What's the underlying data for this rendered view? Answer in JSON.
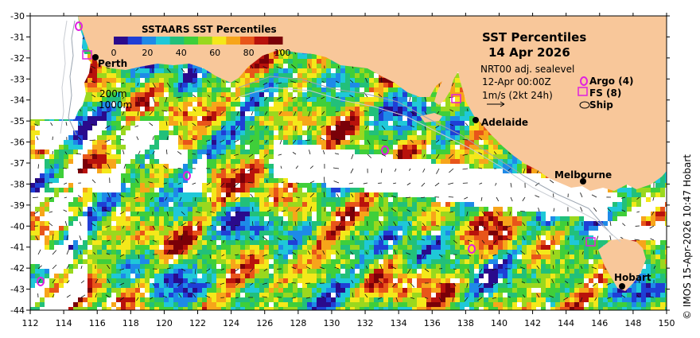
{
  "map": {
    "lon_range": [
      112,
      150
    ],
    "lat_range": [
      -44,
      -30
    ],
    "lon_ticks": [
      "112",
      "114",
      "116",
      "118",
      "120",
      "122",
      "124",
      "126",
      "128",
      "130",
      "132",
      "134",
      "136",
      "138",
      "140",
      "142",
      "144",
      "146",
      "148",
      "150"
    ],
    "lat_ticks": [
      "-30",
      "-31",
      "-32",
      "-33",
      "-34",
      "-35",
      "-36",
      "-37",
      "-38",
      "-39",
      "-40",
      "-41",
      "-42",
      "-43",
      "-44"
    ]
  },
  "colorbar": {
    "title": "SSTAARS SST Percentiles",
    "ticks": [
      "0",
      "20",
      "40",
      "60",
      "80",
      "100"
    ],
    "colors": [
      "#2a0a8c",
      "#1f3fd6",
      "#1e8ae8",
      "#1fc8d8",
      "#22c07a",
      "#3fcf3a",
      "#9ad81e",
      "#f4e81a",
      "#f7a51a",
      "#e8551a",
      "#b8120c",
      "#7a0008"
    ]
  },
  "title": {
    "line1": "SST Percentiles",
    "line2": "14 Apr 2026"
  },
  "info": {
    "source": "NRT00 adj. sealevel",
    "time": "12-Apr 00:00Z",
    "speed": "1m/s (2kt 24h)"
  },
  "legend": {
    "argo": "Argo (4)",
    "fs": "FS (8)",
    "ship": "Ship",
    "argo_color": "#e020e0",
    "fs_color": "#e020e0"
  },
  "contours": {
    "c200": "200m",
    "c1000": "1000m"
  },
  "cities": {
    "perth": "Perth",
    "adelaide": "Adelaide",
    "melbourne": "Melbourne",
    "hobart": "Hobart"
  },
  "credit": "© IMOS 15-Apr-2026 10:47 Hobart",
  "land_color": "#f8c79a"
}
